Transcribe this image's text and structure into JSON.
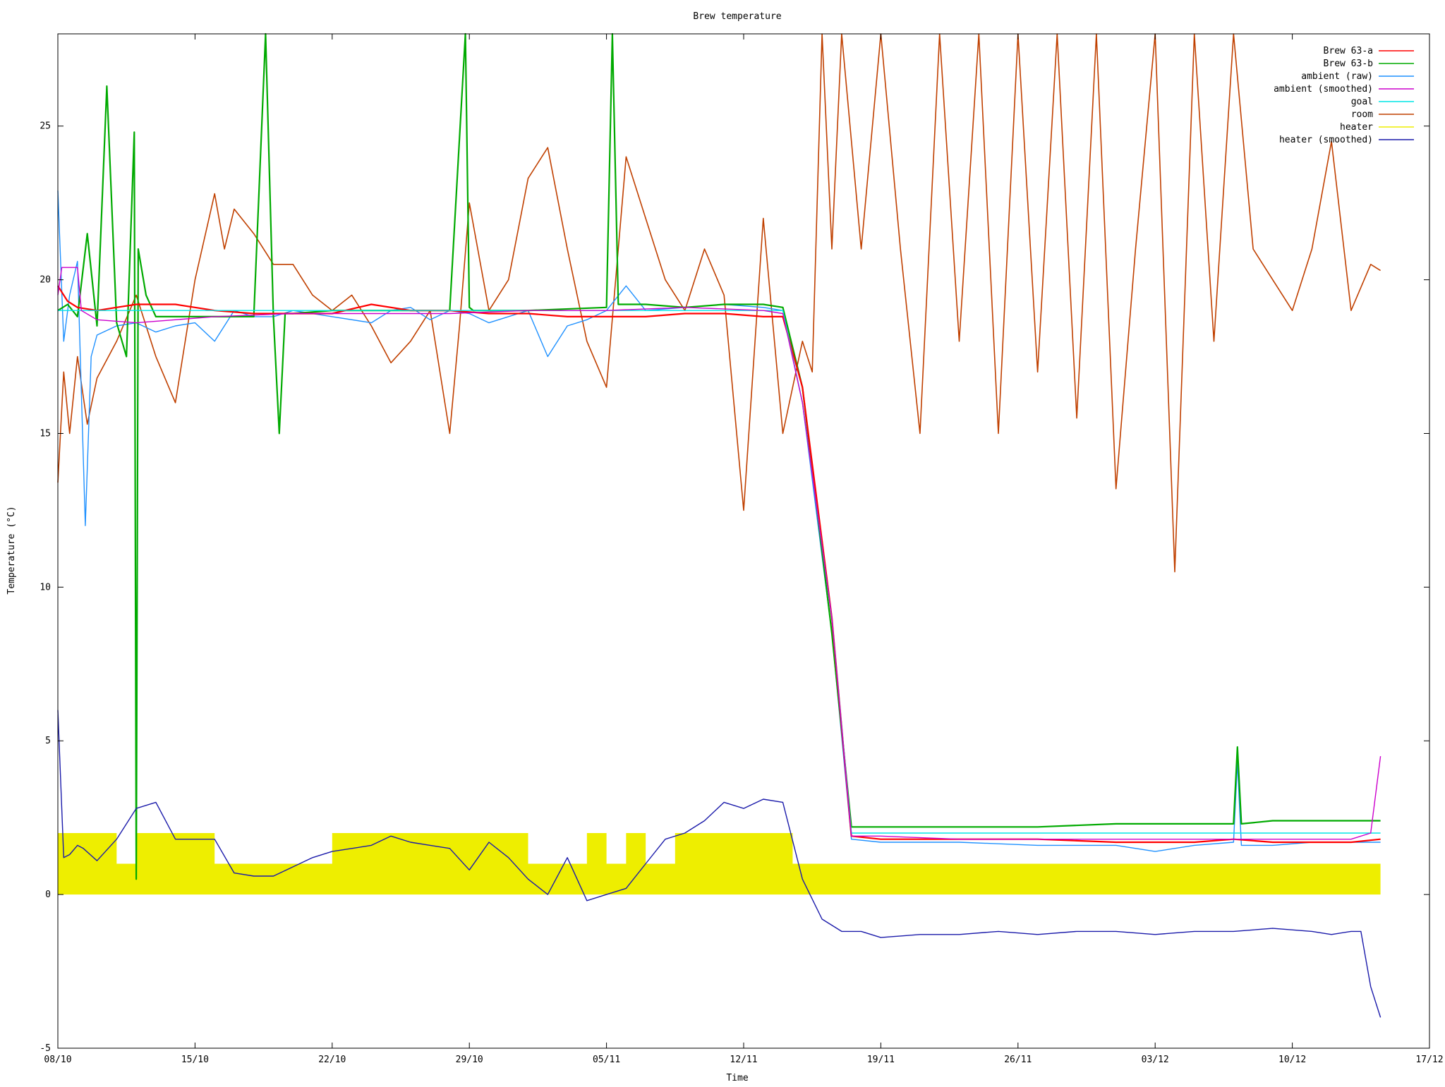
{
  "chart_data": {
    "type": "line",
    "title": "Brew temperature",
    "xlabel": "Time",
    "ylabel": "Temperature (°C)",
    "xlim": [
      0,
      70
    ],
    "ylim": [
      -5,
      28
    ],
    "x_ticks": [
      {
        "x": 0,
        "label": "08/10"
      },
      {
        "x": 7,
        "label": "15/10"
      },
      {
        "x": 14,
        "label": "22/10"
      },
      {
        "x": 21,
        "label": "29/10"
      },
      {
        "x": 28,
        "label": "05/11"
      },
      {
        "x": 35,
        "label": "12/11"
      },
      {
        "x": 42,
        "label": "19/11"
      },
      {
        "x": 49,
        "label": "26/11"
      },
      {
        "x": 56,
        "label": "03/12"
      },
      {
        "x": 63,
        "label": "10/12"
      },
      {
        "x": 70,
        "label": "17/12"
      }
    ],
    "y_ticks": [
      {
        "y": -5,
        "label": "-5"
      },
      {
        "y": 0,
        "label": "0"
      },
      {
        "y": 5,
        "label": "5"
      },
      {
        "y": 10,
        "label": "10"
      },
      {
        "y": 15,
        "label": "15"
      },
      {
        "y": 20,
        "label": "20"
      },
      {
        "y": 25,
        "label": "25"
      }
    ],
    "legend_position": "top-right",
    "series": [
      {
        "name": "Brew 63-a",
        "color": "#ff0000",
        "x": [
          0,
          0.5,
          1,
          2,
          3,
          4,
          6,
          8,
          10,
          12,
          14,
          16,
          18,
          20,
          22,
          24,
          26,
          28,
          30,
          32,
          34,
          36,
          37,
          38,
          39.5,
          40.5,
          42,
          46,
          50,
          54,
          58,
          60,
          62,
          64,
          66,
          67.5
        ],
        "y": [
          19.8,
          19.3,
          19.1,
          19.0,
          19.1,
          19.2,
          19.2,
          19.0,
          18.9,
          18.9,
          18.9,
          19.2,
          19.0,
          19.0,
          18.9,
          18.9,
          18.8,
          18.8,
          18.8,
          18.9,
          18.9,
          18.8,
          18.8,
          16.5,
          9.0,
          1.9,
          1.8,
          1.8,
          1.8,
          1.7,
          1.7,
          1.8,
          1.7,
          1.7,
          1.7,
          1.8
        ]
      },
      {
        "name": "Brew 63-b",
        "color": "#00aa00",
        "x": [
          0,
          0.5,
          1,
          1.5,
          2,
          2.5,
          3,
          3.5,
          3.9,
          4.0,
          4.1,
          4.5,
          5,
          6,
          8,
          10,
          10.6,
          11,
          11.3,
          11.6,
          12,
          14,
          16,
          20,
          20.8,
          21.0,
          21.2,
          24,
          28,
          28.3,
          28.6,
          30,
          32,
          34,
          36,
          37,
          38,
          39.5,
          40.5,
          42,
          46,
          50,
          54,
          58,
          60,
          60.2,
          60.4,
          62,
          64,
          66,
          67.5
        ],
        "y": [
          19.0,
          19.2,
          18.8,
          21.5,
          18.5,
          26.3,
          18.6,
          17.5,
          24.8,
          0.5,
          21.0,
          19.5,
          18.8,
          18.8,
          18.8,
          18.8,
          28.0,
          18.8,
          15.0,
          18.9,
          18.9,
          19.0,
          19.0,
          19.0,
          28.0,
          19.1,
          19.0,
          19.0,
          19.1,
          28.0,
          19.2,
          19.2,
          19.1,
          19.2,
          19.2,
          19.1,
          16.5,
          8.5,
          2.2,
          2.2,
          2.2,
          2.2,
          2.3,
          2.3,
          2.3,
          4.8,
          2.3,
          2.4,
          2.4,
          2.4,
          2.4
        ]
      },
      {
        "name": "ambient (raw)",
        "color": "#1e90ff",
        "x": [
          0,
          0.3,
          0.6,
          1,
          1.4,
          1.7,
          2,
          3,
          4,
          5,
          6,
          7,
          8,
          9,
          10,
          11,
          12,
          14,
          16,
          17,
          18,
          19,
          20,
          21,
          22,
          24,
          25,
          26,
          27,
          28,
          29,
          30,
          32,
          34,
          36,
          37,
          38,
          39.5,
          40.5,
          42,
          46,
          50,
          54,
          56,
          58,
          60,
          60.2,
          60.4,
          62,
          64,
          66,
          67.5
        ],
        "y": [
          22.9,
          18.0,
          19.5,
          20.6,
          12.0,
          17.5,
          18.2,
          18.5,
          18.6,
          18.3,
          18.5,
          18.6,
          18.0,
          19.0,
          18.8,
          18.8,
          19.0,
          18.8,
          18.6,
          19.0,
          19.1,
          18.7,
          19.0,
          18.9,
          18.6,
          19.0,
          17.5,
          18.5,
          18.7,
          19.0,
          19.8,
          19.0,
          19.1,
          19.2,
          19.1,
          19.0,
          16.0,
          8.5,
          1.8,
          1.7,
          1.7,
          1.6,
          1.6,
          1.4,
          1.6,
          1.7,
          4.3,
          1.6,
          1.6,
          1.7,
          1.7,
          1.7
        ]
      },
      {
        "name": "ambient (smoothed)",
        "color": "#cc00cc",
        "x": [
          0,
          0.2,
          1,
          1.2,
          2,
          4,
          6,
          8,
          12,
          16,
          20,
          24,
          28,
          32,
          36,
          37,
          38,
          39.5,
          40.5,
          42,
          46,
          50,
          54,
          58,
          62,
          66,
          67,
          67.5
        ],
        "y": [
          19.5,
          20.4,
          20.4,
          19.0,
          18.7,
          18.6,
          18.7,
          18.8,
          18.9,
          18.9,
          18.9,
          19.0,
          19.0,
          19.1,
          19.0,
          18.9,
          16.0,
          9.0,
          1.9,
          1.9,
          1.8,
          1.8,
          1.8,
          1.8,
          1.8,
          1.8,
          2.0,
          4.5
        ]
      },
      {
        "name": "goal",
        "color": "#00e5e5",
        "x": [
          0,
          37,
          38,
          39.5,
          40.5,
          67.5
        ],
        "y": [
          19.0,
          19.0,
          16.0,
          9.0,
          2.0,
          2.0
        ]
      },
      {
        "name": "room",
        "color": "#c04000",
        "x": [
          0,
          0.3,
          0.6,
          1,
          1.5,
          2,
          3,
          4,
          5,
          6,
          7,
          8,
          8.5,
          9,
          10,
          11,
          12,
          13,
          14,
          15,
          16,
          17,
          18,
          19,
          20,
          20.5,
          21,
          22,
          23,
          24,
          25,
          26,
          27,
          28,
          29,
          30,
          31,
          32,
          33,
          34,
          35,
          36,
          37,
          38,
          38.5,
          39,
          39.5,
          40,
          41,
          42,
          43,
          44,
          45,
          46,
          47,
          48,
          49,
          50,
          51,
          52,
          53,
          54,
          55,
          56,
          57,
          58,
          59,
          60,
          61,
          62,
          63,
          64,
          65,
          66,
          67,
          67.5
        ],
        "y": [
          13.4,
          17.0,
          15.0,
          17.5,
          15.3,
          16.8,
          18.0,
          19.5,
          17.5,
          16.0,
          20.0,
          22.8,
          21.0,
          22.3,
          21.5,
          20.5,
          20.5,
          19.5,
          19.0,
          19.5,
          18.5,
          17.3,
          18.0,
          19.0,
          15.0,
          18.5,
          22.5,
          19.0,
          20.0,
          23.3,
          24.3,
          21.0,
          18.0,
          16.5,
          24.0,
          22.0,
          20.0,
          19.0,
          21.0,
          19.5,
          12.5,
          22.0,
          15.0,
          18.0,
          17.0,
          28.0,
          21.0,
          28.0,
          21.0,
          28.0,
          21.0,
          15.0,
          28.0,
          18.0,
          28.0,
          15.0,
          28.0,
          17.0,
          28.0,
          15.5,
          28.0,
          13.2,
          21.0,
          28.0,
          10.5,
          28.0,
          18.0,
          28.0,
          21.0,
          20.0,
          19.0,
          21.0,
          24.5,
          19.0,
          20.5,
          20.3
        ]
      },
      {
        "name": "heater",
        "color": "#eeee00",
        "x": [
          0,
          3,
          4,
          8,
          10,
          14,
          20,
          24,
          26,
          27,
          28,
          29,
          30,
          31,
          31.5,
          32,
          34,
          36,
          37,
          37.5,
          38,
          67.5
        ],
        "y": [
          2,
          1,
          2,
          1,
          1,
          2,
          2,
          1,
          1,
          2,
          1,
          2,
          1,
          1,
          2,
          2,
          2,
          2,
          2,
          1,
          1,
          1
        ]
      },
      {
        "name": "heater (smoothed)",
        "color": "#1a1aaa",
        "x": [
          0,
          0.3,
          0.6,
          1,
          1.3,
          2,
          3,
          4,
          5,
          6,
          7,
          8,
          9,
          10,
          11,
          12,
          13,
          14,
          15,
          16,
          17,
          18,
          19,
          20,
          21,
          22,
          23,
          24,
          25,
          26,
          27,
          28,
          29,
          30,
          31,
          32,
          33,
          34,
          35,
          36,
          37,
          38,
          39,
          40,
          41,
          42,
          44,
          46,
          48,
          50,
          52,
          54,
          56,
          58,
          60,
          62,
          64,
          65,
          66,
          66.5,
          67,
          67.5
        ],
        "y": [
          6.0,
          1.2,
          1.3,
          1.6,
          1.5,
          1.1,
          1.8,
          2.8,
          3.0,
          1.8,
          1.8,
          1.8,
          0.7,
          0.6,
          0.6,
          0.9,
          1.2,
          1.4,
          1.5,
          1.6,
          1.9,
          1.7,
          1.6,
          1.5,
          0.8,
          1.7,
          1.2,
          0.5,
          0.0,
          1.2,
          -0.2,
          0.0,
          0.2,
          1.0,
          1.8,
          2.0,
          2.4,
          3.0,
          2.8,
          3.1,
          3.0,
          0.5,
          -0.8,
          -1.2,
          -1.2,
          -1.4,
          -1.3,
          -1.3,
          -1.2,
          -1.3,
          -1.2,
          -1.2,
          -1.3,
          -1.2,
          -1.2,
          -1.1,
          -1.2,
          -1.3,
          -1.2,
          -1.2,
          -3.0,
          -4.0
        ]
      }
    ]
  }
}
